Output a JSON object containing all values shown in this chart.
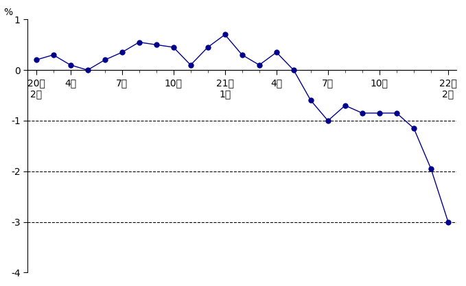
{
  "line_color": "#00008B",
  "marker_color": "#00008B",
  "background_color": "#ffffff",
  "ylabel_text": "%",
  "ylim": [
    -4,
    1
  ],
  "yticks": [
    -4,
    -3,
    -2,
    -1,
    0,
    1
  ],
  "grid_lines": [
    -1,
    -2,
    -3
  ],
  "tick_positions": [
    0,
    2,
    5,
    8,
    11,
    14,
    17,
    20,
    24
  ],
  "tick_labels": [
    "20年\n2月",
    "4月",
    "7月",
    "10月",
    "21年\n1月",
    "4月",
    "7月",
    "10月",
    "22年\n2月"
  ],
  "values": [
    0.2,
    0.3,
    0.1,
    0.0,
    0.2,
    0.35,
    0.55,
    0.5,
    0.45,
    0.1,
    0.45,
    0.7,
    0.3,
    0.1,
    0.35,
    0.0,
    -0.6,
    -1.0,
    -0.7,
    -0.85,
    -0.85,
    -0.85,
    -1.15,
    -1.95,
    -3.0
  ]
}
